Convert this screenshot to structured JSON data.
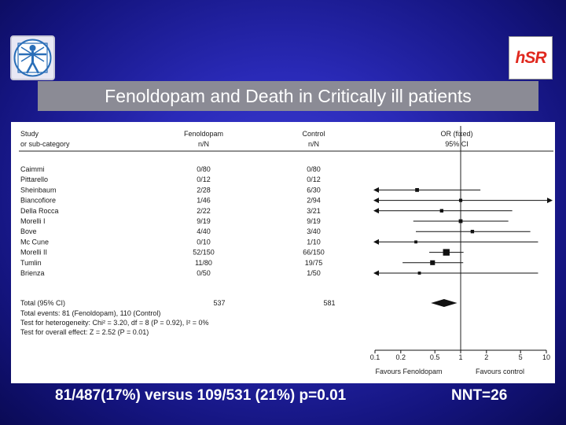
{
  "logos": {
    "left_logo": "vitruvian-man-logo",
    "right_logo_text": "hSR",
    "right_logo_color": "#e0281e"
  },
  "slide": {
    "title": "Fenoldopam and Death in Critically ill patients",
    "footer_left": "81/487(17%) versus 109/531 (21%) p=0.01",
    "footer_right": "NNT=26"
  },
  "chart_data": {
    "type": "forest",
    "header": {
      "study": "Study",
      "subcategory": "or sub-category",
      "treatment": "Fenoldopam",
      "treatment_unit": "n/N",
      "control": "Control",
      "control_unit": "n/N",
      "or_label": "OR (fixed)",
      "ci_label": "95% CI"
    },
    "studies": [
      {
        "name": "Caimmi",
        "treatment": "0/80",
        "control": "0/80",
        "or": null,
        "lo": null,
        "hi": null,
        "arrow_left": false,
        "arrow_right": false,
        "weight": 0
      },
      {
        "name": "Pittarello",
        "treatment": "0/12",
        "control": "0/12",
        "or": null,
        "lo": null,
        "hi": null,
        "arrow_left": false,
        "arrow_right": false,
        "weight": 0
      },
      {
        "name": "Sheinbaum",
        "treatment": "2/28",
        "control": "6/30",
        "or": 0.31,
        "lo": 0.06,
        "hi": 1.7,
        "arrow_left": true,
        "arrow_right": false,
        "weight": 5
      },
      {
        "name": "Biancofiore",
        "treatment": "1/46",
        "control": "2/94",
        "or": 1.0,
        "lo": 0.06,
        "hi": 12,
        "arrow_left": true,
        "arrow_right": true,
        "weight": 2
      },
      {
        "name": "Della Rocca",
        "treatment": "2/22",
        "control": "3/21",
        "or": 0.6,
        "lo": 0.06,
        "hi": 4.0,
        "arrow_left": true,
        "arrow_right": false,
        "weight": 3
      },
      {
        "name": "Morelli I",
        "treatment": "9/19",
        "control": "9/19",
        "or": 1.0,
        "lo": 0.28,
        "hi": 3.6,
        "arrow_left": false,
        "arrow_right": false,
        "weight": 5
      },
      {
        "name": "Bove",
        "treatment": "4/40",
        "control": "3/40",
        "or": 1.37,
        "lo": 0.3,
        "hi": 6.5,
        "arrow_left": false,
        "arrow_right": false,
        "weight": 3
      },
      {
        "name": "Mc Cune",
        "treatment": "0/10",
        "control": "1/10",
        "or": 0.3,
        "lo": 0.06,
        "hi": 8.0,
        "arrow_left": true,
        "arrow_right": false,
        "weight": 1
      },
      {
        "name": "Morelli II",
        "treatment": "52/150",
        "control": "66/150",
        "or": 0.68,
        "lo": 0.43,
        "hi": 1.08,
        "arrow_left": false,
        "arrow_right": false,
        "weight": 45
      },
      {
        "name": "Tumlin",
        "treatment": "11/80",
        "control": "19/75",
        "or": 0.47,
        "lo": 0.21,
        "hi": 1.07,
        "arrow_left": false,
        "arrow_right": false,
        "weight": 15
      },
      {
        "name": "Brienza",
        "treatment": "0/50",
        "control": "1/50",
        "or": 0.33,
        "lo": 0.06,
        "hi": 8.0,
        "arrow_left": true,
        "arrow_right": false,
        "weight": 1
      }
    ],
    "total": {
      "label": "Total (95% CI)",
      "treatment": "537",
      "control": "581",
      "or": 0.64,
      "lo": 0.45,
      "hi": 0.91
    },
    "stats": [
      "Total events: 81 (Fenoldopam), 110 (Control)",
      "Test for heterogeneity: Chi² = 3.20, df = 8 (P = 0.92), I² = 0%",
      "Test for overall effect: Z = 2.52 (P = 0.01)"
    ],
    "x_scale": "log",
    "xlim": [
      0.1,
      10
    ],
    "ticks": [
      {
        "value": 0.1,
        "label": "0.1"
      },
      {
        "value": 0.2,
        "label": "0.2"
      },
      {
        "value": 0.5,
        "label": "0.5"
      },
      {
        "value": 1,
        "label": "1"
      },
      {
        "value": 2,
        "label": "2"
      },
      {
        "value": 5,
        "label": "5"
      },
      {
        "value": 10,
        "label": "10"
      }
    ],
    "favours_left": "Favours Fenoldopam",
    "favours_right": "Favours control"
  }
}
